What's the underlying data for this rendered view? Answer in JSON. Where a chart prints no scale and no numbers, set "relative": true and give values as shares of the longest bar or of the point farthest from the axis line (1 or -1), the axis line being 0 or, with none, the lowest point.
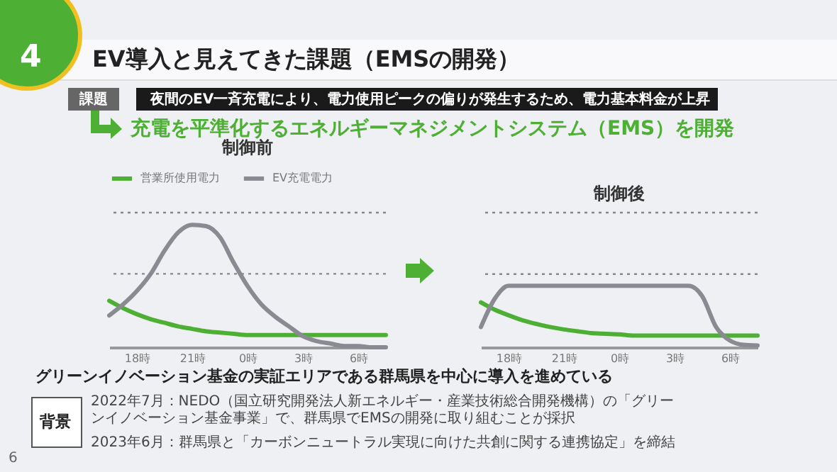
{
  "chart_data": [
    {
      "type": "line",
      "title": "制御前",
      "relative": true,
      "legend": "top left",
      "categories": [
        null,
        null,
        "18時",
        null,
        null,
        null,
        "21時",
        null,
        null,
        null,
        "0時",
        null,
        null,
        null,
        "3時",
        null,
        null,
        null,
        "6時",
        null,
        null
      ],
      "series": [
        {
          "name": "営業所使用電力",
          "color": "#4db034",
          "values": [
            0.38,
            0.32,
            0.27,
            0.23,
            0.2,
            0.17,
            0.15,
            0.13,
            0.12,
            0.11,
            0.1,
            0.1,
            0.1,
            0.1,
            0.1,
            0.1,
            0.1,
            0.1,
            0.1,
            0.1,
            0.1
          ]
        },
        {
          "name": "EV充電電力",
          "color": "#8a8a92",
          "values": [
            0.26,
            0.35,
            0.46,
            0.6,
            0.79,
            0.94,
            1,
            0.99,
            0.9,
            0.69,
            0.5,
            0.35,
            0.25,
            0.17,
            0.09,
            0.05,
            0.03,
            0.01,
            0.01,
            0,
            0
          ]
        }
      ],
      "ref_lines": [
        {
          "axis": "y",
          "value": 1.1,
          "color": "#888888",
          "line_style": "dotted"
        },
        {
          "axis": "y",
          "value": 0.6,
          "color": "#888888",
          "line_style": "dotted"
        }
      ],
      "annotations": [
        "4",
        "EV導入と見えてきた課題（EMSの開発）",
        "課題",
        "夜間のEV一斉充電により、電力使用ピークの偏りが発生するため、電力基本料金が上昇",
        "充電を平準化するエネルギーマネジメントシステム（EMS）を開発"
      ]
    },
    {
      "type": "line",
      "title": "制御後",
      "relative": true,
      "categories": [
        null,
        null,
        "18時",
        null,
        null,
        null,
        "21時",
        null,
        null,
        null,
        "0時",
        null,
        null,
        null,
        "3時",
        null,
        null,
        null,
        "6時",
        null,
        null
      ],
      "series": [
        {
          "color": "#4db034",
          "values": [
            0.73,
            0.61,
            0.52,
            0.44,
            0.38,
            0.33,
            0.29,
            0.26,
            0.23,
            0.22,
            0.21,
            0.19,
            0.19,
            0.19,
            0.19,
            0.19,
            0.19,
            0.19,
            0.19,
            0.19,
            0.19
          ]
        },
        {
          "color": "#8a8a92",
          "values": [
            0.33,
            0.79,
            1,
            1,
            1,
            1,
            1,
            1,
            1,
            1,
            1,
            1,
            1,
            1,
            1,
            1,
            0.83,
            0.33,
            0.11,
            0.04,
            0.03
          ]
        }
      ],
      "ref_lines": [
        {
          "axis": "y",
          "value": 2.19,
          "color": "#888888",
          "line_style": "dotted"
        },
        {
          "axis": "y",
          "value": 1.19,
          "color": "#888888",
          "line_style": "dotted"
        }
      ],
      "annotations": [
        "グリーンイノベーション基金の実証エリアである群馬県を中心に導入を進めている",
        "背景",
        "2022年7月：NEDO（国立研究開発法人新エネルギー・産業技術総合開発機構）の「グリーンイノベーション基金事業」で、群馬県でEMSの開発に取り組むことが採択",
        "2023年6月：群馬県と「カーボンニュートラル実現に向けた共創に関する連携協定」を締結",
        "6"
      ]
    }
  ]
}
